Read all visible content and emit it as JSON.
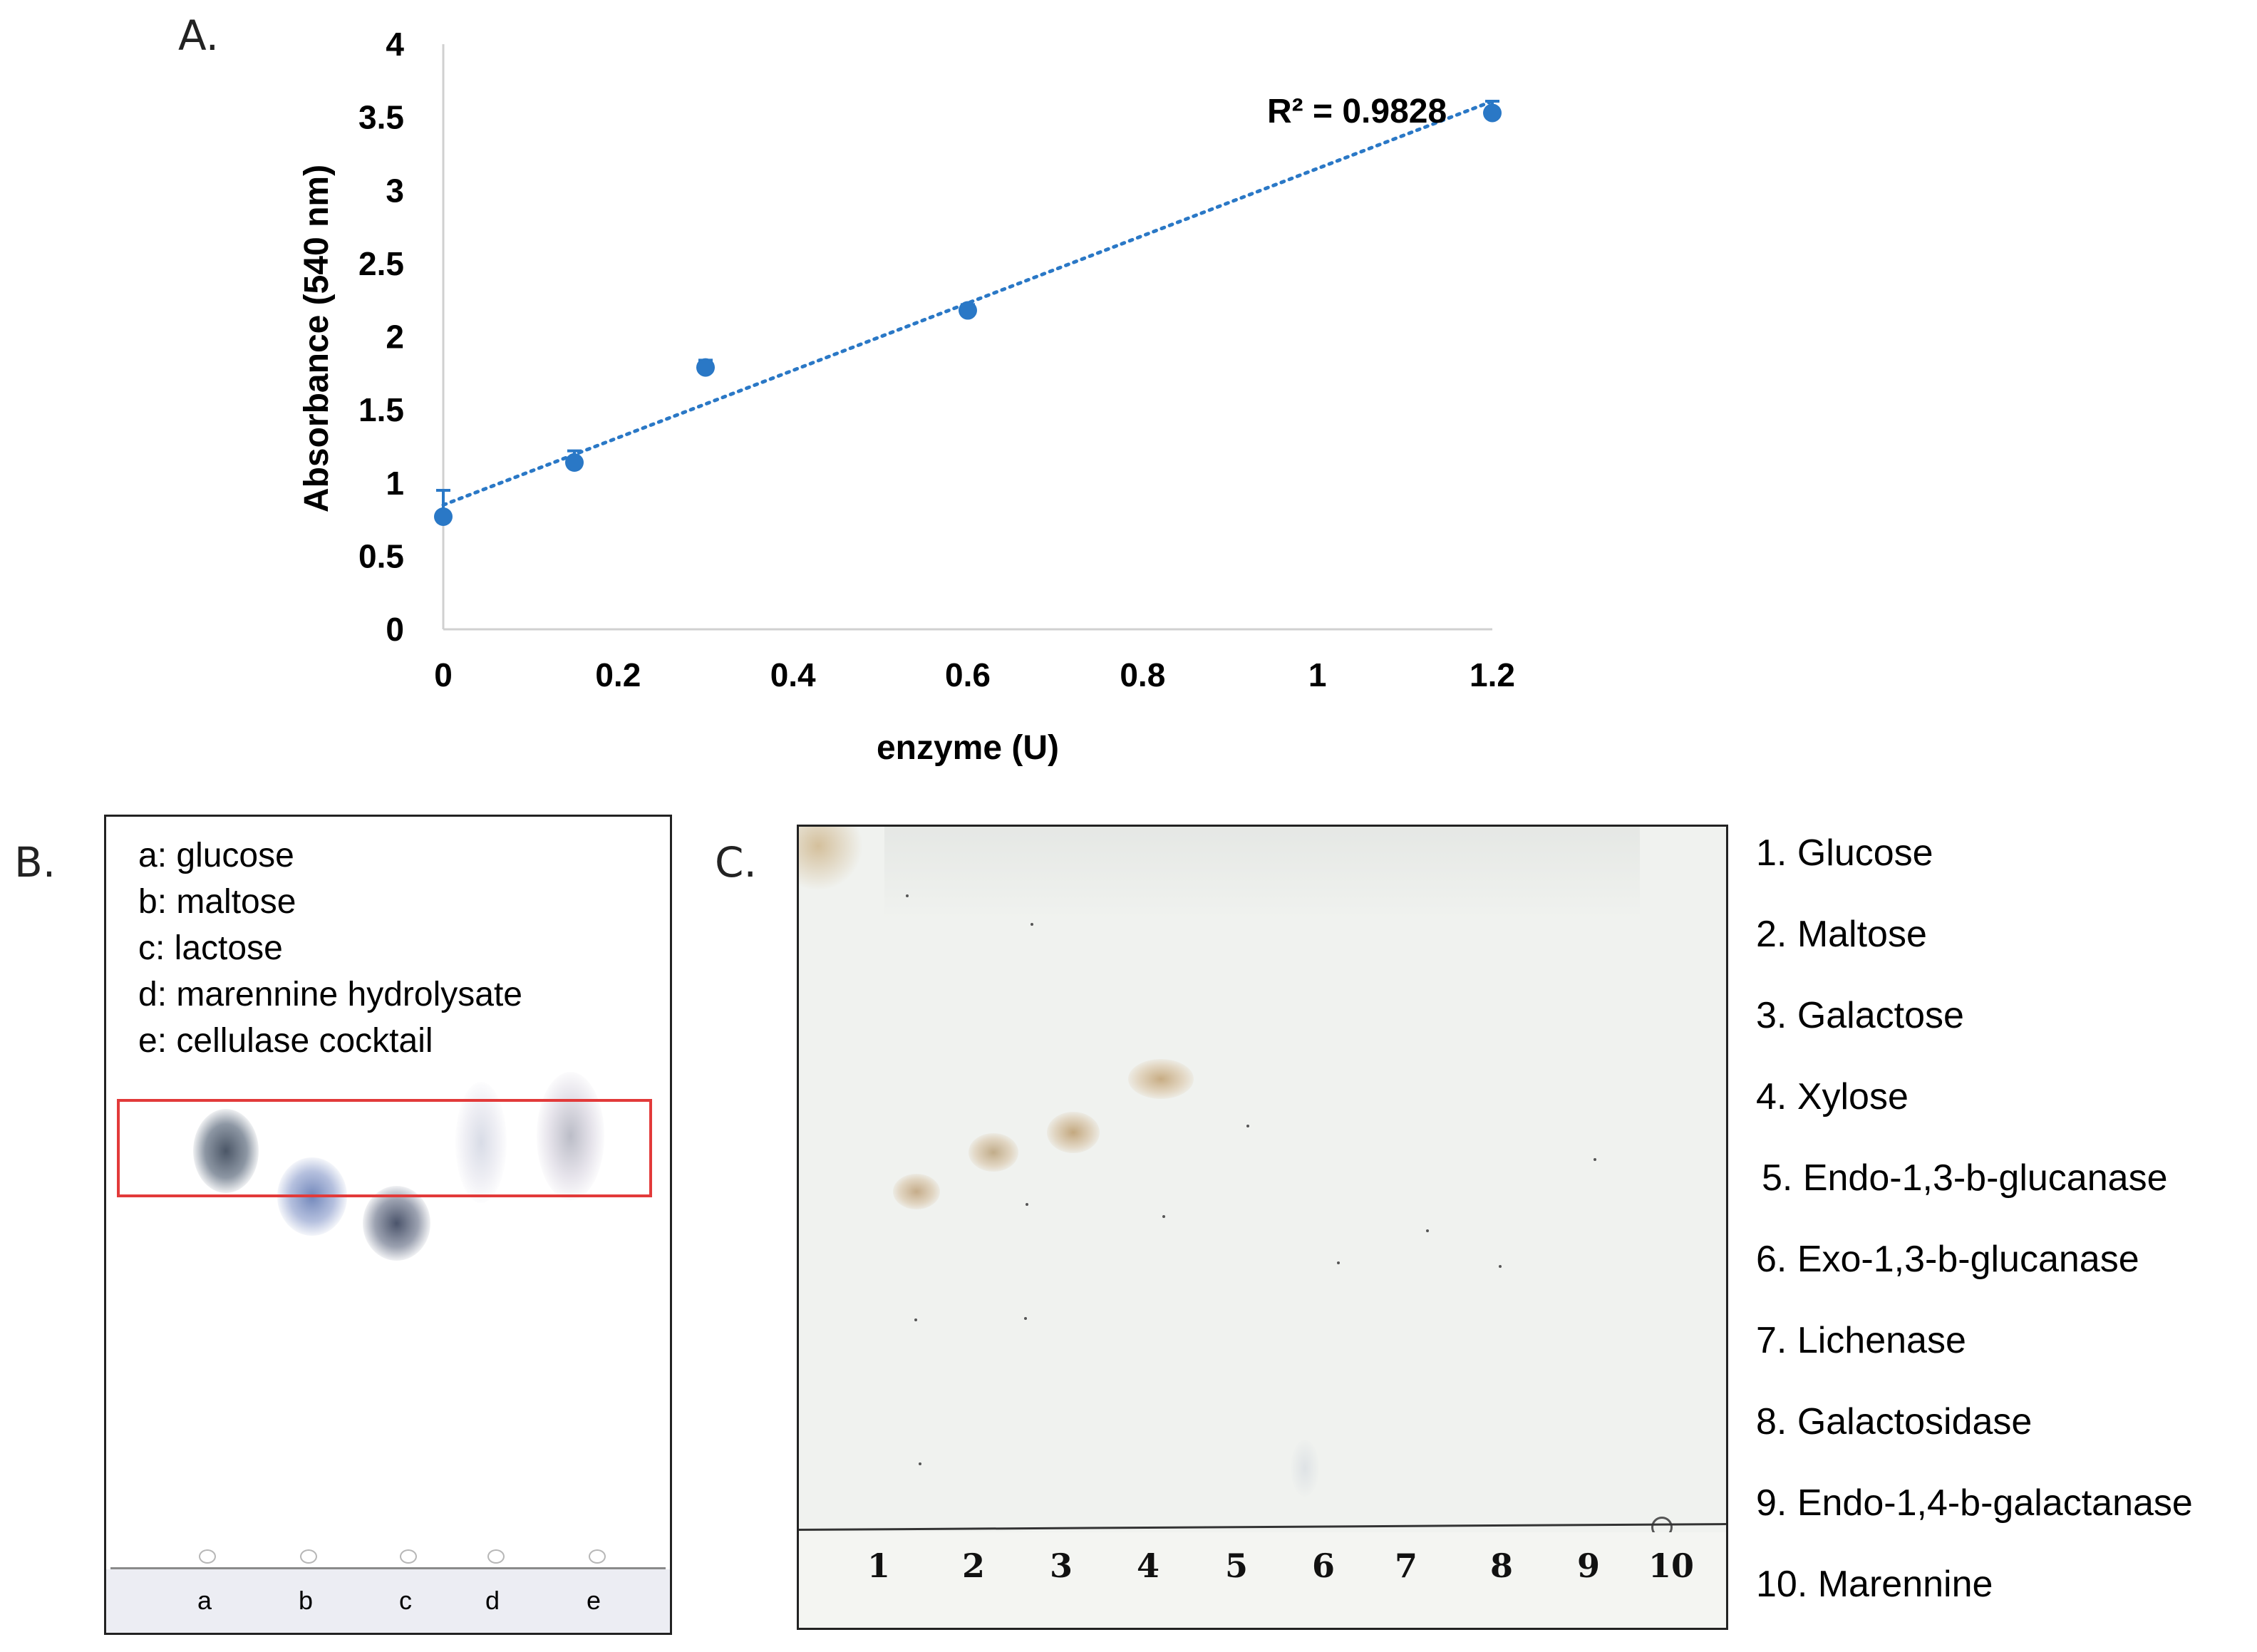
{
  "panel_labels": {
    "a": "A.",
    "b": "B.",
    "c": "C."
  },
  "chart_data": {
    "type": "scatter",
    "title": "",
    "xlabel": "enzyme (U)",
    "ylabel": "Absorbance (540 nm)",
    "x_ticks": [
      "0",
      "0.2",
      "0.4",
      "0.6",
      "0.8",
      "1",
      "1.2"
    ],
    "y_ticks": [
      "0",
      "0.5",
      "1",
      "1.5",
      "2",
      "2.5",
      "3",
      "3.5",
      "4"
    ],
    "xlim": [
      0,
      1.2
    ],
    "ylim": [
      0,
      4
    ],
    "series": [
      {
        "name": "Absorbance",
        "x": [
          0,
          0.15,
          0.3,
          0.6,
          1.2
        ],
        "y": [
          0.77,
          1.14,
          1.79,
          2.18,
          3.53
        ],
        "error": [
          0.18,
          0.08,
          0.05,
          0.04,
          0.08
        ],
        "color": "#2a78c6"
      }
    ],
    "trendline": {
      "type": "linear",
      "slope": 2.3,
      "intercept": 0.85,
      "style": "dotted",
      "color": "#2a78c6"
    },
    "annotation": "R² = 0.9828"
  },
  "panel_b": {
    "legend": [
      "a: glucose",
      "b: maltose",
      "c: lactose",
      "d: marennine hydrolysate",
      "e: cellulase cocktail"
    ],
    "lanes": [
      "a",
      "b",
      "c",
      "d",
      "e"
    ],
    "highlight_color": "#e23a3a"
  },
  "panel_c": {
    "lane_numbers": [
      "1",
      "2",
      "3",
      "4",
      "5",
      "6",
      "7",
      "8",
      "9",
      "10"
    ],
    "legend": [
      "1. Glucose",
      "2. Maltose",
      "3. Galactose",
      "4. Xylose",
      "5. Endo-1,3-b-glucanase",
      "6. Exo-1,3-b-glucanase",
      "7. Lichenase",
      "8. Galactosidase",
      "9. Endo-1,4-b-galactanase",
      "10. Marennine"
    ]
  }
}
